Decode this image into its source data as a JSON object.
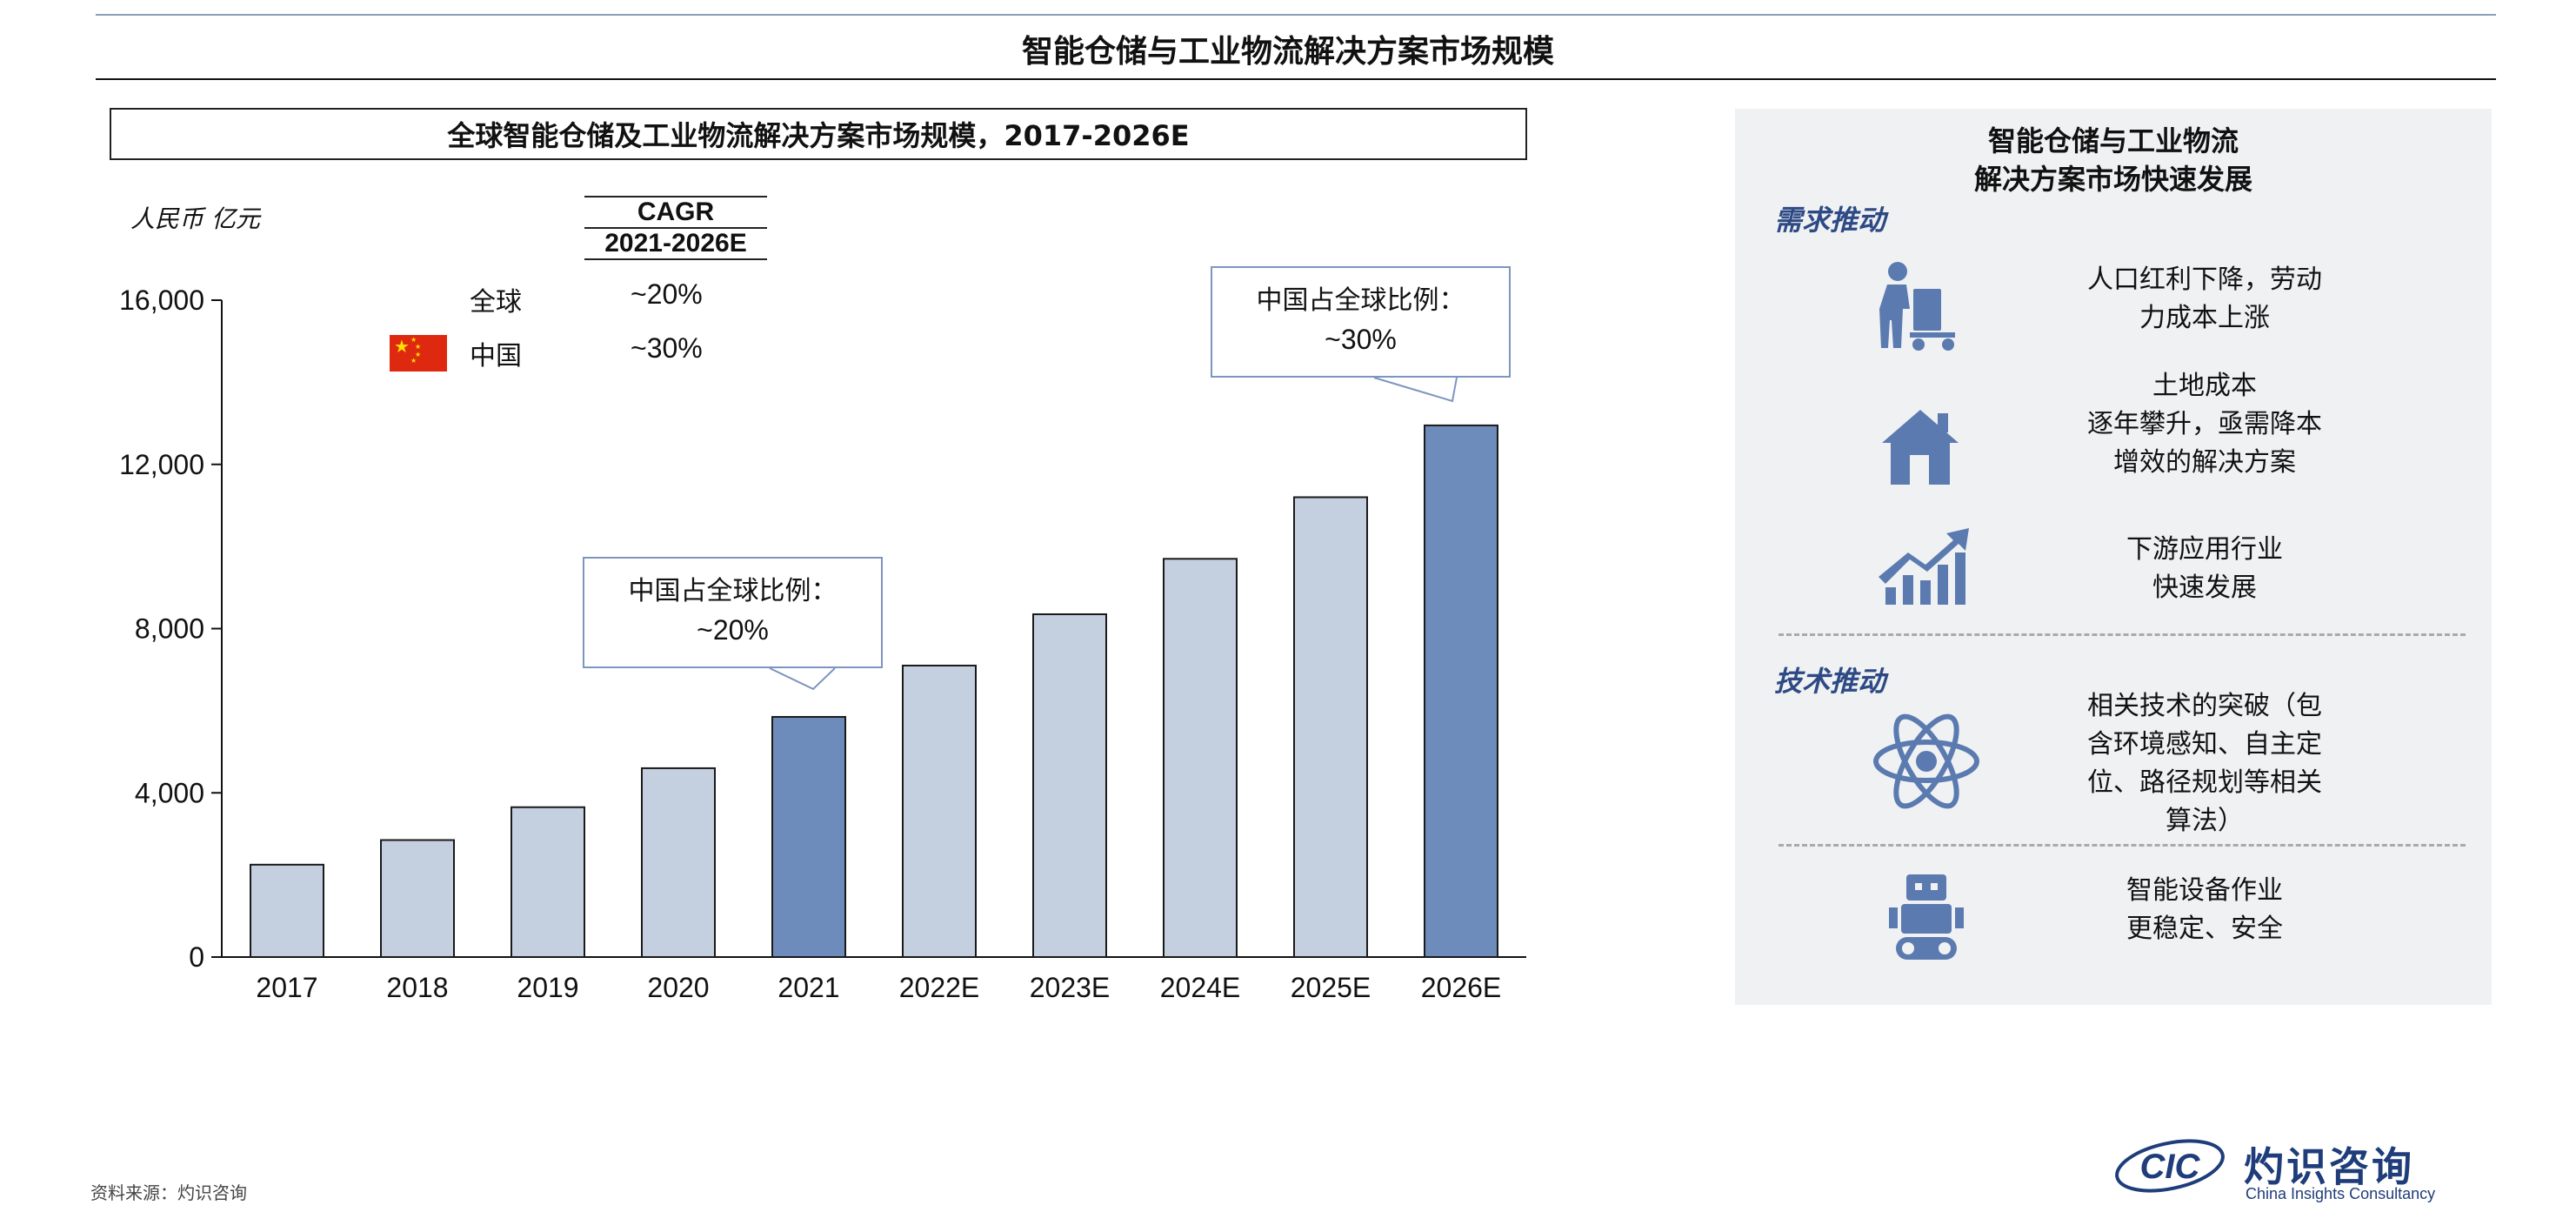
{
  "page": {
    "title": "智能仓储与工业物流解决方案市场规模",
    "source": "资料来源：灼识咨询"
  },
  "chart_title": "全球智能仓储及工业物流解决方案市场规模，2017-2026E",
  "cagr_table": {
    "header_line1": "CAGR",
    "header_line2": "2021-2026E",
    "rows": [
      {
        "label": "全球",
        "value": "~20%"
      },
      {
        "label": "中国",
        "value": "~30%",
        "icon": "china-flag-icon"
      }
    ]
  },
  "callouts": [
    {
      "line1": "中国占全球比例：",
      "line2": "~20%"
    },
    {
      "line1": "中国占全球比例：",
      "line2": "~30%"
    }
  ],
  "chart_data": {
    "type": "bar",
    "title": "全球智能仓储及工业物流解决方案市场规模，2017-2026E",
    "ylabel": "人民币 亿元",
    "xlabel": "",
    "categories": [
      "2017",
      "2018",
      "2019",
      "2020",
      "2021",
      "2022E",
      "2023E",
      "2024E",
      "2025E",
      "2026E"
    ],
    "values": [
      2250,
      2850,
      3650,
      4600,
      5850,
      7100,
      8350,
      9700,
      11200,
      12950
    ],
    "highlight_categories": [
      "2021",
      "2026E"
    ],
    "ylim": [
      0,
      16000
    ],
    "yticks": [
      0,
      4000,
      8000,
      12000,
      16000
    ],
    "ytick_labels": [
      "0",
      "4,000",
      "8,000",
      "12,000",
      "16,000"
    ],
    "grid": false,
    "colors": {
      "default": "#c4cfe0",
      "highlight": "#6d8bbb",
      "edge": "#1a1a1a"
    }
  },
  "panel": {
    "title_line1": "智能仓储与工业物流",
    "title_line2": "解决方案市场快速发展",
    "sections": [
      {
        "heading": "需求推动",
        "items": [
          {
            "icon": "worker-trolley-icon",
            "lines": [
              "人口红利下降，劳动",
              "力成本上涨"
            ]
          },
          {
            "icon": "house-icon",
            "lines": [
              "土地成本",
              "逐年攀升，亟需降本",
              "增效的解决方案"
            ]
          },
          {
            "icon": "growth-chart-icon",
            "lines": [
              "下游应用行业",
              "快速发展"
            ]
          }
        ]
      },
      {
        "heading": "技术推动",
        "items": [
          {
            "icon": "atom-icon",
            "lines": [
              "相关技术的突破（包",
              "含环境感知、自主定",
              "位、路径规划等相关",
              "算法）"
            ]
          }
        ]
      },
      {
        "heading": "",
        "items": [
          {
            "icon": "robot-icon",
            "lines": [
              "智能设备作业",
              "更稳定、安全"
            ]
          }
        ]
      }
    ]
  },
  "logo": {
    "mark": "CIC",
    "name_cn": "灼识咨询",
    "name_en": "China Insights Consultancy"
  },
  "colors": {
    "accent": "#2e4a85",
    "panel_bg": "#f0f1f3",
    "callout_border": "#7d95bf",
    "icon": "#5b7bb0"
  }
}
